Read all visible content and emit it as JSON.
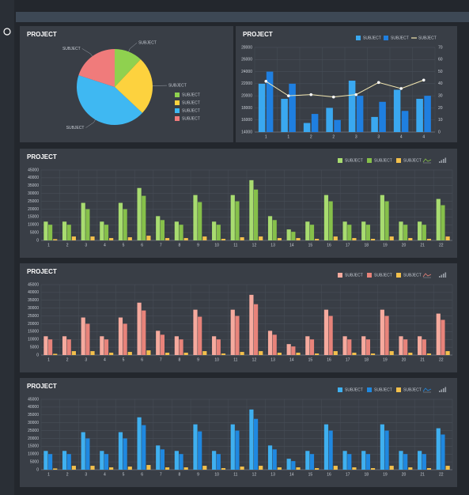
{
  "chart_data": [
    {
      "type": "pie",
      "title": "PROJECT",
      "categories": [
        "SUBJECT",
        "SUBJECT",
        "SUBJECT",
        "SUBJECT"
      ],
      "values": [
        12,
        25,
        43,
        20
      ],
      "colors": [
        "#8fd14f",
        "#fdd23e",
        "#3fb8f2",
        "#f07b7b"
      ]
    },
    {
      "type": "bar",
      "title": "PROJECT",
      "categories": [
        "1",
        "1",
        "2",
        "2",
        "3",
        "3",
        "4",
        "4"
      ],
      "series": [
        {
          "name": "SUBJECT",
          "color": "#3aa8f0",
          "values": [
            22000,
            19500,
            15500,
            18000,
            22500,
            16500,
            21000,
            19500
          ]
        },
        {
          "name": "SUBJECT",
          "color": "#1f7fe0",
          "values": [
            24000,
            22000,
            17000,
            16000,
            20000,
            19000,
            17500,
            20000
          ]
        },
        {
          "name": "SUBJECT",
          "type": "line",
          "axis": "y2",
          "color": "#f3e7b1",
          "values": [
            42,
            30,
            31,
            29,
            31,
            41,
            36,
            43
          ]
        }
      ],
      "ylim": [
        14000,
        28000
      ],
      "yticks": [
        14000,
        16000,
        18000,
        20000,
        22000,
        24000,
        26000,
        28000
      ],
      "y2lim": [
        0,
        70
      ],
      "y2ticks": [
        0,
        10,
        20,
        30,
        40,
        50,
        60,
        70
      ],
      "grid": true
    },
    {
      "type": "bar",
      "title": "PROJECT",
      "categories": [
        "1",
        "2",
        "3",
        "4",
        "5",
        "6",
        "7",
        "8",
        "9",
        "10",
        "11",
        "12",
        "13",
        "14",
        "15",
        "16",
        "17",
        "18",
        "19",
        "20",
        "21",
        "22"
      ],
      "series": [
        {
          "name": "SUBJECT",
          "color": "#a8dc70",
          "values": [
            12000,
            12000,
            24000,
            12000,
            24000,
            33500,
            15500,
            12000,
            29000,
            12000,
            29000,
            38500,
            15500,
            7000,
            12000,
            29000,
            12000,
            12000,
            29000,
            12000,
            12000,
            26500
          ]
        },
        {
          "name": "SUBJECT",
          "color": "#86c04a",
          "values": [
            10000,
            10000,
            20000,
            10000,
            20000,
            28500,
            13000,
            10000,
            24500,
            10000,
            25000,
            32500,
            13000,
            5500,
            10000,
            25000,
            10000,
            10000,
            25000,
            10000,
            10000,
            22500
          ]
        },
        {
          "name": "SUBJECT",
          "color": "#f3c04c",
          "values": [
            800,
            2500,
            2500,
            1500,
            2000,
            3000,
            1500,
            1500,
            2500,
            1000,
            2000,
            2500,
            1500,
            1500,
            1000,
            2500,
            1500,
            1000,
            2500,
            1500,
            1000,
            2500
          ]
        }
      ],
      "ylim": [
        0,
        45000
      ],
      "yticks": [
        0,
        5000,
        10000,
        15000,
        20000,
        25000,
        30000,
        35000,
        40000,
        45000
      ],
      "grid": true
    },
    {
      "type": "bar",
      "title": "PROJECT",
      "categories": [
        "1",
        "2",
        "3",
        "4",
        "5",
        "6",
        "7",
        "8",
        "9",
        "10",
        "11",
        "12",
        "13",
        "14",
        "15",
        "16",
        "17",
        "18",
        "19",
        "20",
        "21",
        "22"
      ],
      "series": [
        {
          "name": "SUBJECT",
          "color": "#f6aa9e",
          "values": [
            12000,
            12000,
            24000,
            12000,
            24000,
            33500,
            15500,
            12000,
            29000,
            12000,
            29000,
            38500,
            15500,
            7000,
            12000,
            29000,
            12000,
            12000,
            29000,
            12000,
            12000,
            26500
          ]
        },
        {
          "name": "SUBJECT",
          "color": "#e8837a",
          "values": [
            10000,
            10000,
            20000,
            10000,
            20000,
            28500,
            13000,
            10000,
            24500,
            10000,
            25000,
            32500,
            13000,
            5500,
            10000,
            25000,
            10000,
            10000,
            25000,
            10000,
            10000,
            22500
          ]
        },
        {
          "name": "SUBJECT",
          "color": "#f3c04c",
          "values": [
            800,
            2500,
            2500,
            1500,
            2000,
            3000,
            1500,
            1500,
            2500,
            1000,
            2000,
            2500,
            1500,
            1500,
            1000,
            2500,
            1500,
            1000,
            2500,
            1500,
            1000,
            2500
          ]
        }
      ],
      "ylim": [
        0,
        45000
      ],
      "yticks": [
        0,
        5000,
        10000,
        15000,
        20000,
        25000,
        30000,
        35000,
        40000,
        45000
      ],
      "grid": true
    },
    {
      "type": "bar",
      "title": "PROJECT",
      "categories": [
        "1",
        "2",
        "3",
        "4",
        "5",
        "6",
        "7",
        "8",
        "9",
        "10",
        "11",
        "12",
        "13",
        "14",
        "15",
        "16",
        "17",
        "18",
        "19",
        "20",
        "21",
        "22"
      ],
      "series": [
        {
          "name": "SUBJECT",
          "color": "#3fb0f0",
          "values": [
            12000,
            12000,
            24000,
            12000,
            24000,
            33500,
            15500,
            12000,
            29000,
            12000,
            29000,
            38500,
            15500,
            7000,
            12000,
            29000,
            12000,
            12000,
            29000,
            12000,
            12000,
            26500
          ]
        },
        {
          "name": "SUBJECT",
          "color": "#1f88e0",
          "values": [
            10000,
            10000,
            20000,
            10000,
            20000,
            28500,
            13000,
            10000,
            24500,
            10000,
            25000,
            32500,
            13000,
            5500,
            10000,
            25000,
            10000,
            10000,
            25000,
            10000,
            10000,
            22500
          ]
        },
        {
          "name": "SUBJECT",
          "color": "#f3c04c",
          "values": [
            800,
            2500,
            2500,
            1500,
            2000,
            3000,
            1500,
            1500,
            2500,
            1000,
            2000,
            2500,
            1500,
            1500,
            1000,
            2500,
            1500,
            1000,
            2500,
            1500,
            1000,
            2500
          ]
        }
      ],
      "ylim": [
        0,
        45000
      ],
      "yticks": [
        0,
        5000,
        10000,
        15000,
        20000,
        25000,
        30000,
        35000,
        40000,
        45000
      ],
      "grid": true
    }
  ]
}
